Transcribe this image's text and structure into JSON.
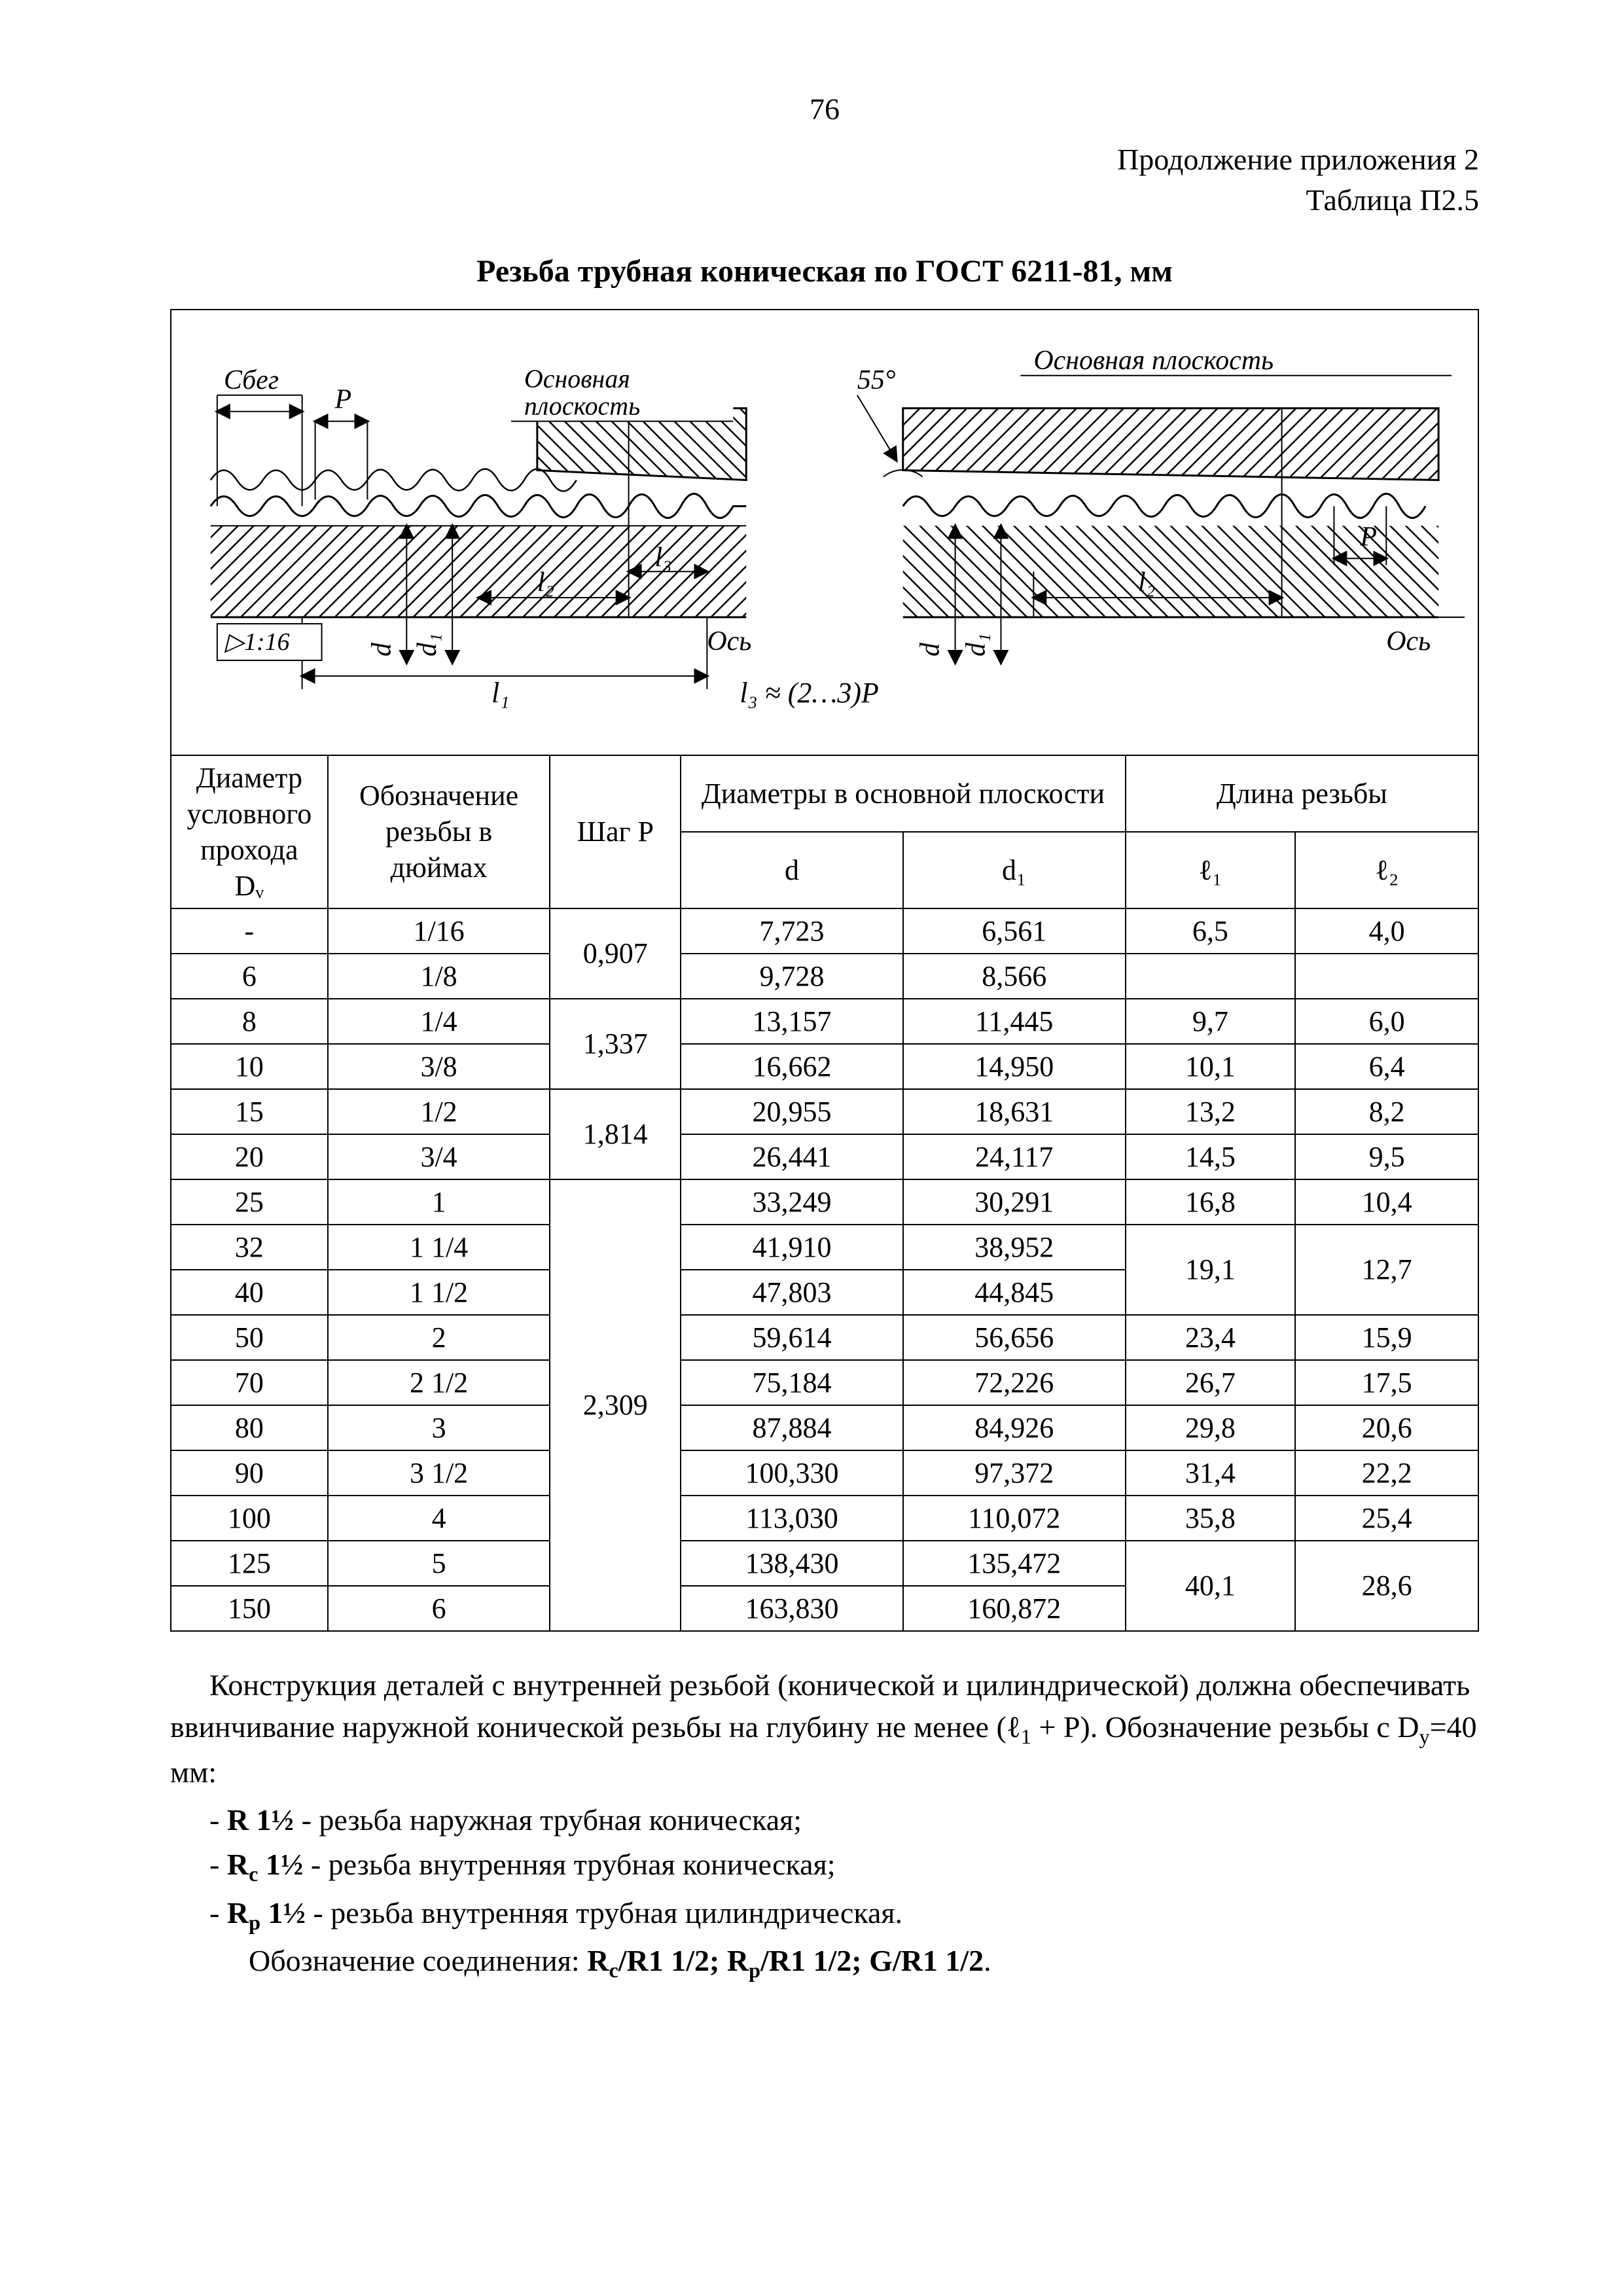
{
  "page_number": "76",
  "header_right_line1": "Продолжение приложения 2",
  "header_right_line2": "Таблица П2.5",
  "title": "Резьба трубная коническая по ГОСТ 6211-81, мм",
  "diagram": {
    "lbl_sbeg": "Сбег",
    "lbl_P_left": "P",
    "lbl_osn_plos_left": "Основная\nплоскость",
    "lbl_osn_plos_right": "Основная плоскость",
    "lbl_55": "55°",
    "lbl_d_left": "d",
    "lbl_d1_left": "d₁",
    "lbl_l1": "l₁",
    "lbl_l2_left": "l₂",
    "lbl_l3": "l₃",
    "lbl_os_left": "Ось",
    "lbl_taper": "▷1:16",
    "lbl_l3eq": "l₃ ≈ (2…3)P",
    "lbl_d_right": "d",
    "lbl_d1_right": "d₁",
    "lbl_l2_right": "l₂",
    "lbl_os_right": "Ось",
    "lbl_P_right": "P",
    "colors": {
      "stroke": "#000000",
      "hatch": "#000000",
      "bg": "#ffffff"
    }
  },
  "table": {
    "head": {
      "c1": "Диаметр условного прохода",
      "c1_sub": "Dᵥ",
      "c2": "Обозначение резьбы в дюймах",
      "c3": "Шаг P",
      "c4": "Диаметры в основной плоскости",
      "c4a": "d",
      "c4b": "d₁",
      "c5": "Длина резьбы",
      "c5a": "ℓ₁",
      "c5b": "ℓ₂"
    },
    "rows": [
      {
        "dv": "-",
        "desig": "1/16",
        "pitch": "0,907",
        "d": "7,723",
        "d1": "6,561",
        "l1": "6,5",
        "l2": "4,0",
        "p_span": 2,
        "l_span": 1
      },
      {
        "dv": "6",
        "desig": "1/8",
        "d": "9,728",
        "d1": "8,566",
        "l1": "",
        "l2": ""
      },
      {
        "dv": "8",
        "desig": "1/4",
        "pitch": "1,337",
        "d": "13,157",
        "d1": "11,445",
        "l1": "9,7",
        "l2": "6,0",
        "p_span": 2
      },
      {
        "dv": "10",
        "desig": "3/8",
        "d": "16,662",
        "d1": "14,950",
        "l1": "10,1",
        "l2": "6,4"
      },
      {
        "dv": "15",
        "desig": "1/2",
        "pitch": "1,814",
        "d": "20,955",
        "d1": "18,631",
        "l1": "13,2",
        "l2": "8,2",
        "p_span": 2
      },
      {
        "dv": "20",
        "desig": "3/4",
        "d": "26,441",
        "d1": "24,117",
        "l1": "14,5",
        "l2": "9,5"
      },
      {
        "dv": "25",
        "desig": "1",
        "pitch": "2,309",
        "d": "33,249",
        "d1": "30,291",
        "l1": "16,8",
        "l2": "10,4",
        "p_span": 10
      },
      {
        "dv": "32",
        "desig": "1 1/4",
        "d": "41,910",
        "d1": "38,952",
        "l1": "19,1",
        "l2": "12,7",
        "l_span": 2
      },
      {
        "dv": "40",
        "desig": "1 1/2",
        "d": "47,803",
        "d1": "44,845"
      },
      {
        "dv": "50",
        "desig": "2",
        "d": "59,614",
        "d1": "56,656",
        "l1": "23,4",
        "l2": "15,9"
      },
      {
        "dv": "70",
        "desig": "2 1/2",
        "d": "75,184",
        "d1": "72,226",
        "l1": "26,7",
        "l2": "17,5"
      },
      {
        "dv": "80",
        "desig": "3",
        "d": "87,884",
        "d1": "84,926",
        "l1": "29,8",
        "l2": "20,6"
      },
      {
        "dv": "90",
        "desig": "3 1/2",
        "d": "100,330",
        "d1": "97,372",
        "l1": "31,4",
        "l2": "22,2"
      },
      {
        "dv": "100",
        "desig": "4",
        "d": "113,030",
        "d1": "110,072",
        "l1": "35,8",
        "l2": "25,4"
      },
      {
        "dv": "125",
        "desig": "5",
        "d": "138,430",
        "d1": "135,472",
        "l1": "40,1",
        "l2": "28,6",
        "l_span": 2
      },
      {
        "dv": "150",
        "desig": "6",
        "d": "163,830",
        "d1": "160,872"
      }
    ]
  },
  "body": {
    "p1a": "Конструкция деталей с внутренней резьбой (конической и цилиндрической) должна обеспечивать ввинчивание наружной конической резьбы на глубину не менее (ℓ",
    "p1b": "1",
    "p1c": " + P). Обозначение резьбы с D",
    "p1d": "y",
    "p1e": "=40 мм:",
    "li1a": "-   ",
    "li1b": "R 1½",
    "li1c": "  - резьба наружная трубная коническая;",
    "li2a": "-   ",
    "li2b": "R",
    "li2b_sub": "c",
    "li2c": " 1½",
    "li2d": " - резьба внутренняя трубная коническая;",
    "li3a": "-   ",
    "li3b": "R",
    "li3b_sub": "p",
    "li3c": " 1½",
    "li3d": " - резьба внутренняя трубная цилиндрическая.",
    "p2a": "Обозначение соединения: ",
    "p2b": "R",
    "p2b_sub": "c",
    "p2c": "/R1 1/2;   R",
    "p2c_sub": "p",
    "p2d": "/R1 1/2;   G/R1 1/2",
    "p2e": "."
  }
}
